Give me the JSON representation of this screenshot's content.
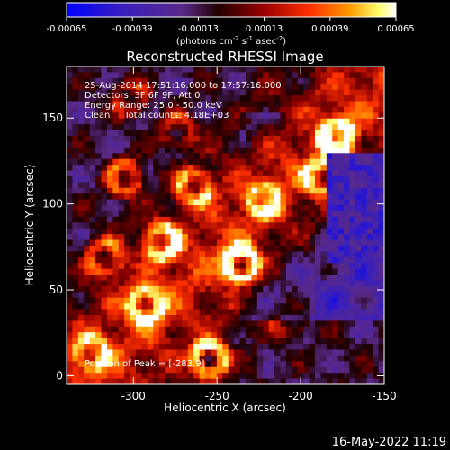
{
  "colorbar": {
    "tick_labels": [
      "-0.00065",
      "-0.00039",
      "-0.00013",
      "0.00013",
      "0.00039",
      "0.00065"
    ],
    "units_main": "(photons cm",
    "units_sup1": "-2",
    "units_mid1": " s",
    "units_sup2": "-1",
    "units_mid2": " asec",
    "units_sup3": "-2",
    "units_end": ")"
  },
  "image": {
    "title": "Reconstructed RHESSI Image",
    "overlay_lines": [
      "25-Aug-2014 17:51:16.000 to 17:57:16.000",
      "Detectors: 3F 6F 9F, Att 0",
      "Energy Range: 25.0 - 50.0 keV",
      "Clean     Total counts: 4.18E+03"
    ],
    "position_label": "Position of Peak = [-283,9]"
  },
  "axes": {
    "xlabel": "Heliocentric X (arcsec)",
    "ylabel": "Heliocentric Y (arcsec)",
    "x_ticks": [
      "-300",
      "-250",
      "-200",
      "-150"
    ],
    "y_ticks": [
      "0",
      "50",
      "100",
      "150"
    ],
    "x_tick_values": [
      -300,
      -250,
      -200,
      -150
    ],
    "y_tick_values": [
      0,
      50,
      100,
      150
    ],
    "x_range": [
      -340,
      -150
    ],
    "y_range": [
      -5,
      180
    ]
  },
  "footer": {
    "date": "16-May-2022 11:19"
  },
  "colors": {
    "colormap": [
      "#0000ff",
      "#3b20b8",
      "#5a2a8a",
      "#1a0000",
      "#8a0000",
      "#ff3000",
      "#ff9a00",
      "#ffff80",
      "#ffffff"
    ]
  }
}
